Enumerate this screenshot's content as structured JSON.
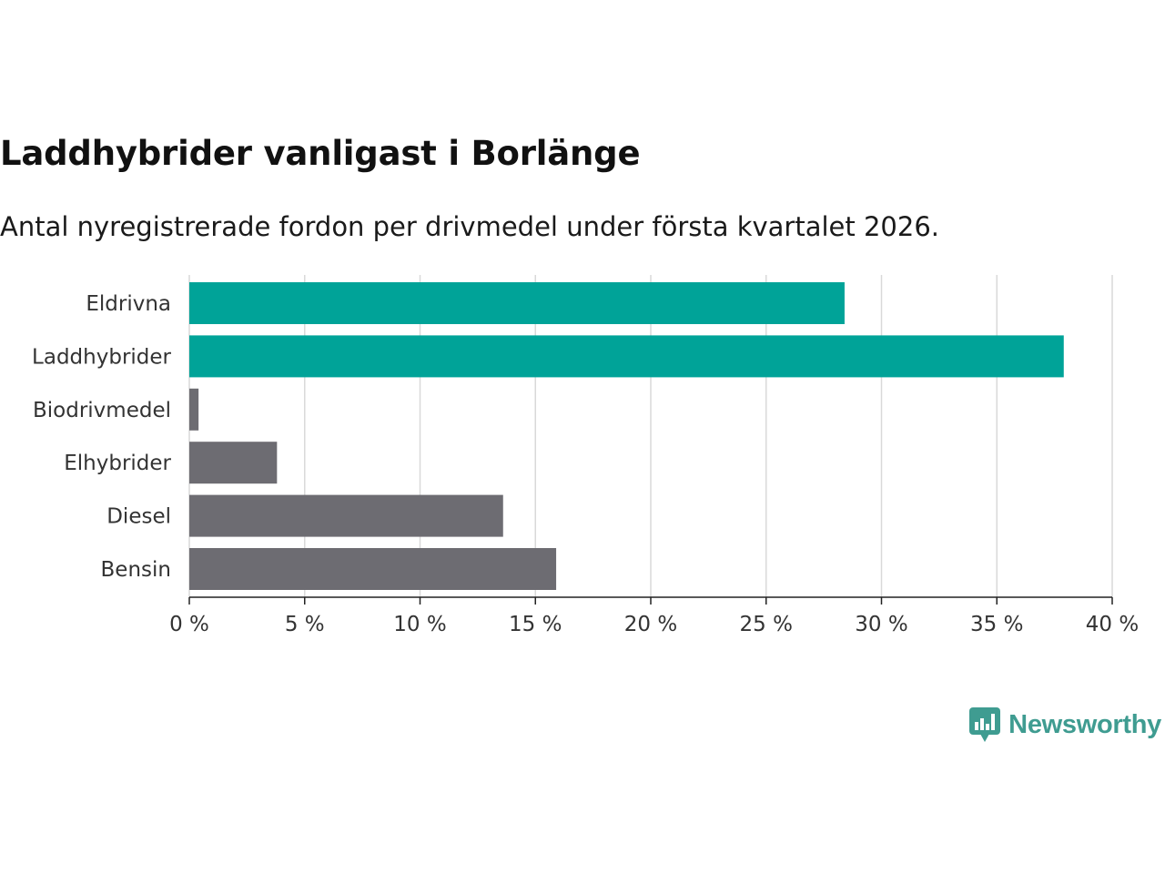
{
  "header": {
    "title": "Laddhybrider vanligast i Borlänge",
    "subtitle": "Antal nyregistrerade fordon per drivmedel under första kvartalet 2026."
  },
  "brand": {
    "name": "Newsworthy",
    "logo_icon": "newsworthy-logo-icon",
    "color": "#3f9c91"
  },
  "colors": {
    "highlight": "#00a398",
    "default": "#6d6c72",
    "grid": "#d9d9d9",
    "axis": "#222222"
  },
  "chart_data": {
    "type": "bar",
    "orientation": "horizontal",
    "title": "Laddhybrider vanligast i Borlänge",
    "subtitle": "Antal nyregistrerade fordon per drivmedel under första kvartalet 2026.",
    "xlabel": "",
    "ylabel": "",
    "xlim": [
      0,
      40
    ],
    "grid": true,
    "categories": [
      "Eldrivna",
      "Laddhybrider",
      "Biodrivmedel",
      "Elhybrider",
      "Diesel",
      "Bensin"
    ],
    "values": [
      28.4,
      37.9,
      0.4,
      3.8,
      13.6,
      15.9
    ],
    "highlighted": [
      true,
      true,
      false,
      false,
      false,
      false
    ],
    "ticks": [
      0,
      5,
      10,
      15,
      20,
      25,
      30,
      35,
      40
    ],
    "tick_labels": [
      "0 %",
      "5 %",
      "10 %",
      "15 %",
      "20 %",
      "25 %",
      "30 %",
      "35 %",
      "40 %"
    ]
  }
}
